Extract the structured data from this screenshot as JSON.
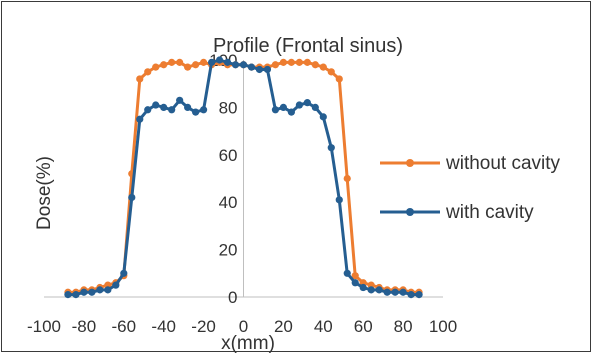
{
  "chart_data": {
    "type": "line",
    "title": "Profile (Frontal sinus)",
    "xlabel": "x(mm)",
    "ylabel": "Dose(%)",
    "xlim": [
      -100,
      100
    ],
    "ylim": [
      0,
      100
    ],
    "x_ticks": [
      -100,
      -80,
      -60,
      -40,
      -20,
      0,
      20,
      40,
      60,
      80,
      100
    ],
    "x_tick_labels": [
      "-100",
      "-80",
      "-60",
      "-40",
      "-20",
      "0",
      "20",
      "40",
      "60",
      "80",
      "100"
    ],
    "y_ticks": [
      0,
      20,
      40,
      60,
      80,
      100
    ],
    "y_tick_labels": [
      "0",
      "20",
      "40",
      "60",
      "80",
      "100"
    ],
    "grid": false,
    "legend_position": "right",
    "series": [
      {
        "name": "without cavity",
        "color": "#ED7D31",
        "x": [
          -88,
          -84,
          -80,
          -76,
          -72,
          -68,
          -64,
          -60,
          -56,
          -52,
          -48,
          -44,
          -40,
          -36,
          -32,
          -28,
          -24,
          -20,
          -16,
          -12,
          -8,
          -4,
          0,
          4,
          8,
          12,
          16,
          20,
          24,
          28,
          32,
          36,
          40,
          44,
          48,
          52,
          56,
          60,
          64,
          68,
          72,
          76,
          80,
          84,
          88
        ],
        "y": [
          2,
          2,
          3,
          3,
          4,
          5,
          6,
          9,
          52,
          92,
          95,
          97,
          98,
          99,
          99,
          97,
          98,
          99,
          98,
          99,
          98,
          98,
          98,
          97,
          97,
          97,
          98,
          99,
          99,
          99,
          99,
          98,
          97,
          95,
          92,
          50,
          9,
          6,
          5,
          4,
          3,
          3,
          3,
          2,
          2
        ]
      },
      {
        "name": "with cavity",
        "color": "#255E91",
        "x": [
          -88,
          -84,
          -80,
          -76,
          -72,
          -68,
          -64,
          -60,
          -56,
          -52,
          -48,
          -44,
          -40,
          -36,
          -32,
          -28,
          -24,
          -20,
          -16,
          -12,
          -8,
          -4,
          0,
          4,
          8,
          12,
          16,
          20,
          24,
          28,
          32,
          36,
          40,
          44,
          48,
          52,
          56,
          60,
          64,
          68,
          72,
          76,
          80,
          84,
          88
        ],
        "y": [
          1,
          1,
          2,
          2,
          3,
          3,
          5,
          10,
          42,
          75,
          79,
          81,
          80,
          79,
          83,
          80,
          78,
          79,
          99,
          100,
          99,
          98,
          98,
          97,
          96,
          96,
          79,
          80,
          78,
          81,
          82,
          80,
          76,
          63,
          41,
          10,
          6,
          4,
          3,
          3,
          2,
          2,
          2,
          1,
          1
        ]
      }
    ]
  }
}
